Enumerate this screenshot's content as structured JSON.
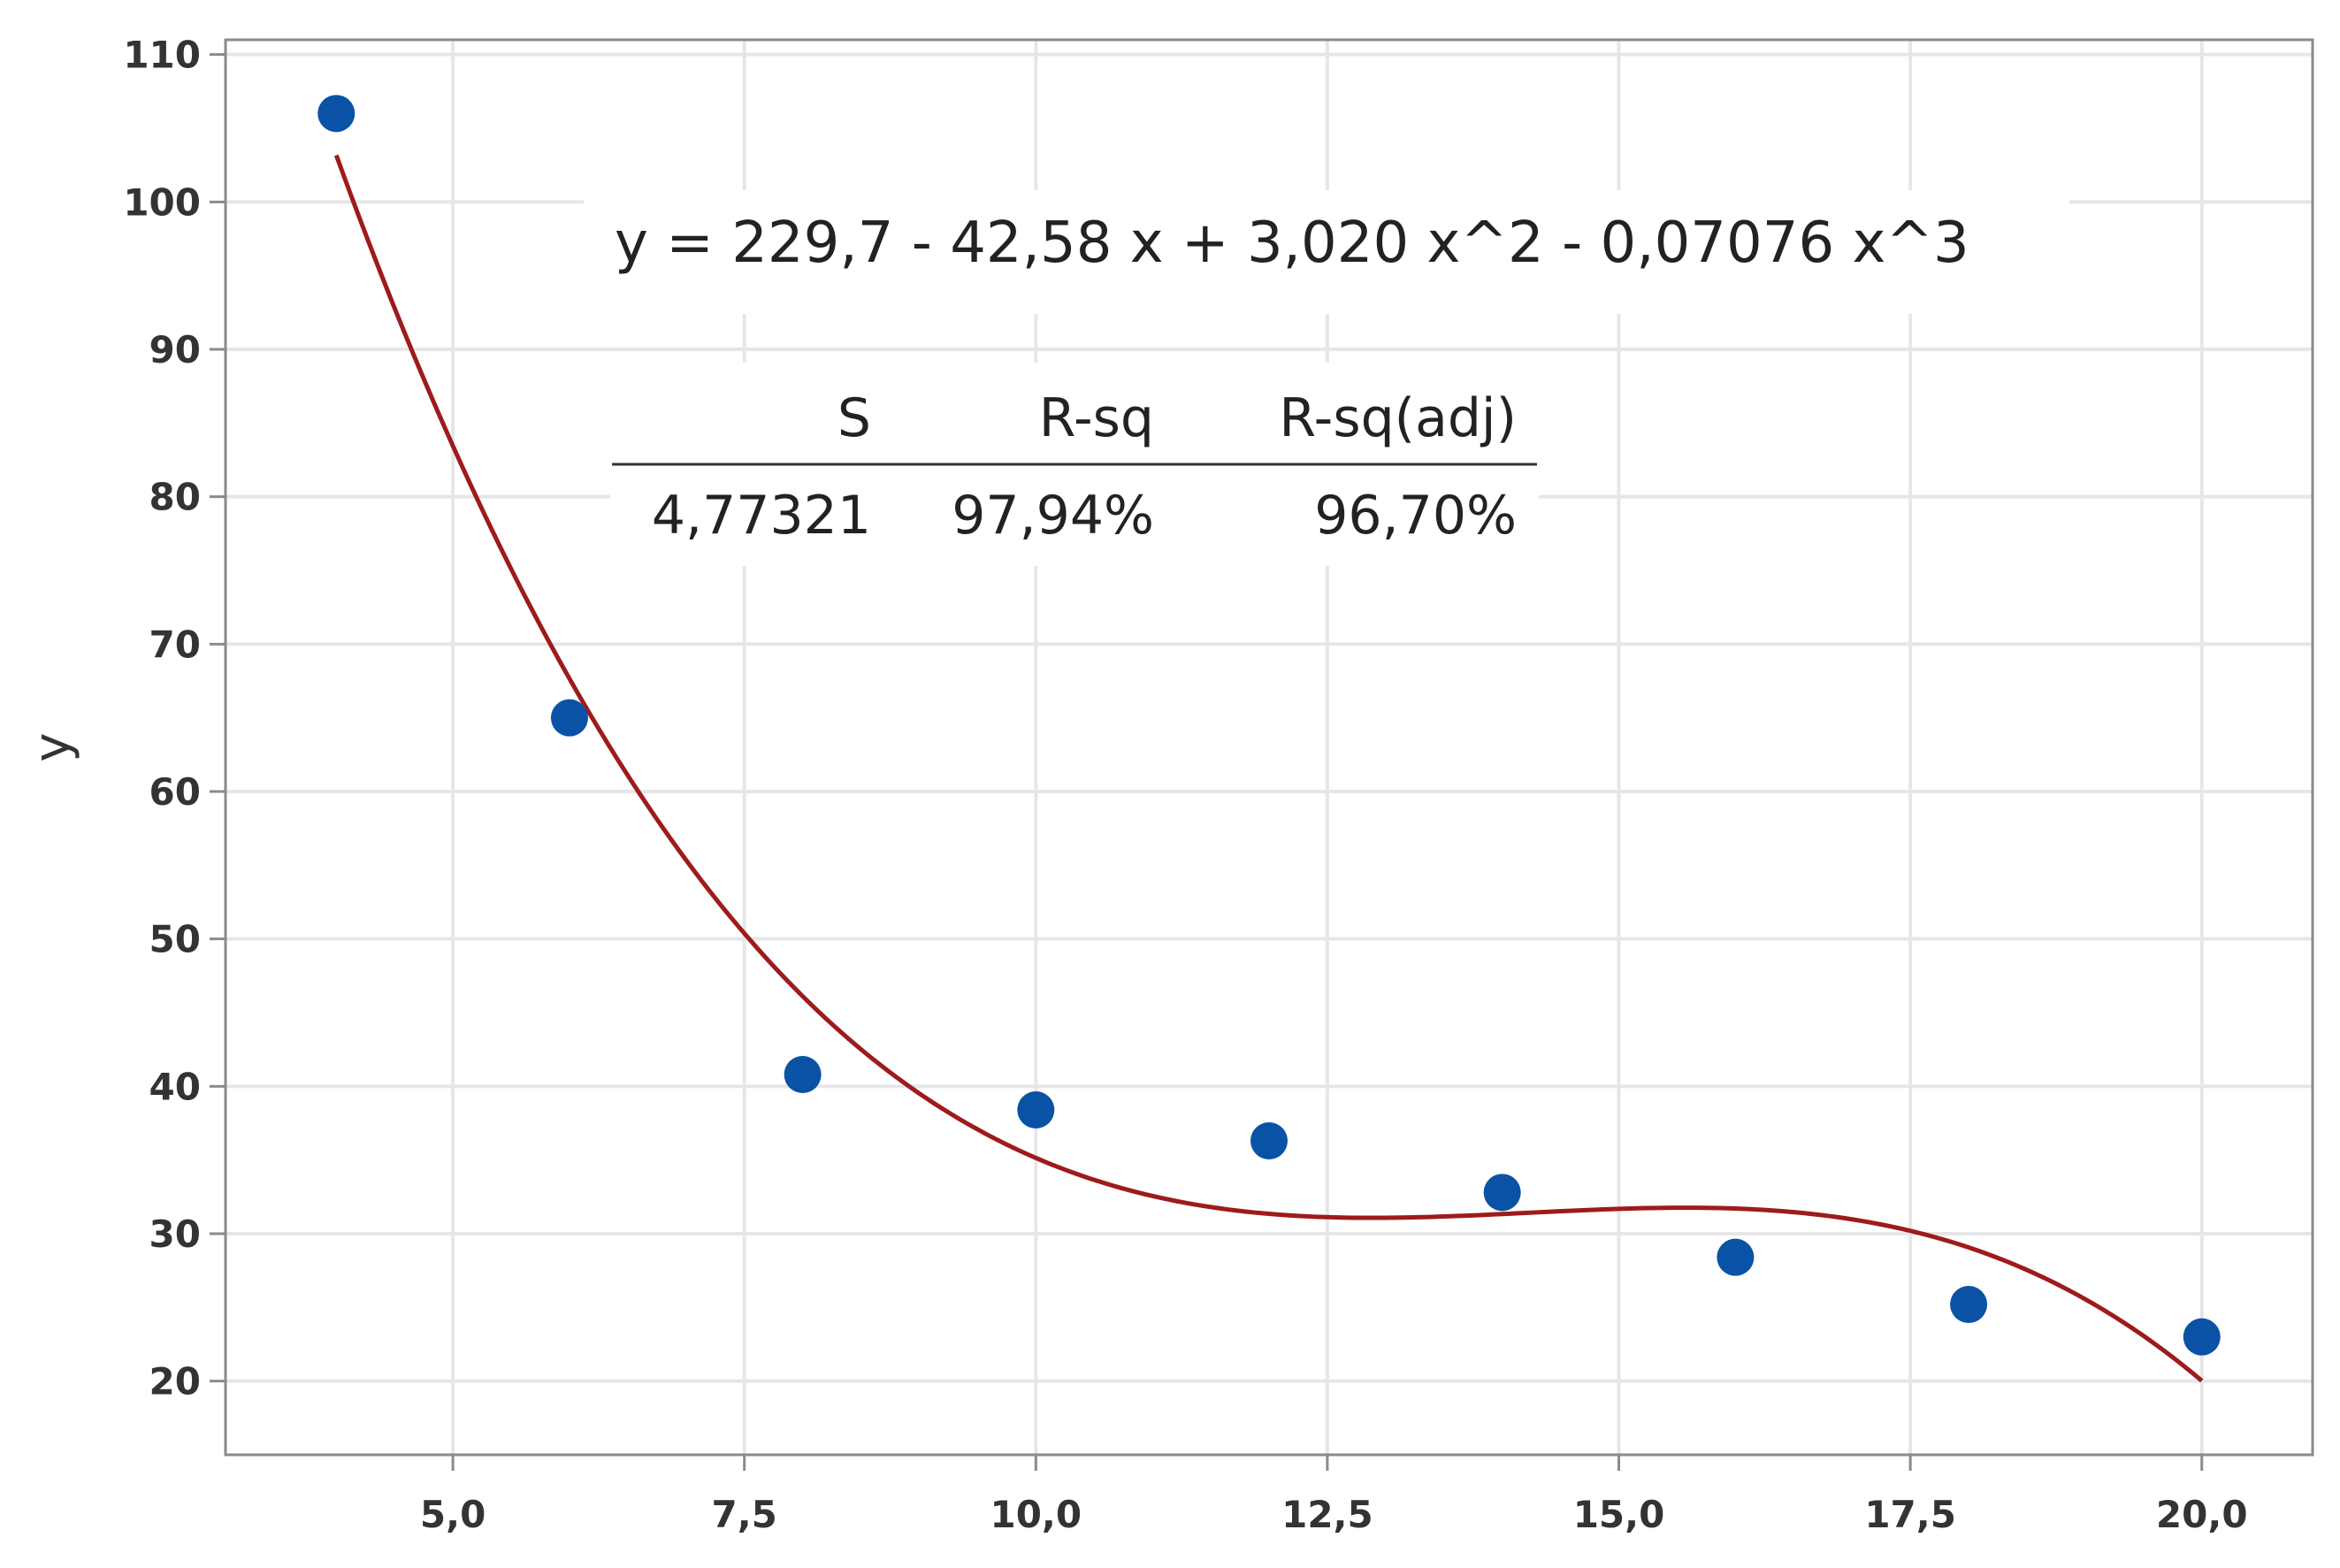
{
  "chart_data": {
    "type": "scatter",
    "title": "",
    "xlabel": "",
    "ylabel": "y",
    "xlim": [
      3.05,
      20.95
    ],
    "ylim": [
      15,
      111
    ],
    "grid": true,
    "xticks": [
      5.0,
      7.5,
      10.0,
      12.5,
      15.0,
      17.5,
      20.0
    ],
    "xtick_labels": [
      "5,0",
      "7,5",
      "10,0",
      "12,5",
      "15,0",
      "17,5",
      "20,0"
    ],
    "yticks": [
      20,
      30,
      40,
      50,
      60,
      70,
      80,
      90,
      100,
      110
    ],
    "ytick_labels": [
      "20",
      "30",
      "40",
      "50",
      "60",
      "70",
      "80",
      "90",
      "100",
      "110"
    ],
    "points": {
      "x": [
        4,
        6,
        8,
        10,
        12,
        14,
        16,
        18,
        20
      ],
      "y": [
        106,
        65,
        40.8,
        38.4,
        36.3,
        32.8,
        28.4,
        25.2,
        23.0
      ],
      "color": "#0a52a5"
    },
    "fit": {
      "type": "cubic",
      "coefficients": [
        229.7,
        -42.58,
        3.02,
        -0.07076
      ],
      "x_range": [
        4,
        20
      ],
      "color": "#9e1b1b"
    },
    "annotations": {
      "equation": "y = 229,7 - 42,58 x + 3,020 x^2 - 0,07076 x^3",
      "stats_headers": [
        "S",
        "R-sq",
        "R-sq(adj)"
      ],
      "stats_values": [
        "4,77321",
        "97,94%",
        "96,70%"
      ]
    }
  }
}
